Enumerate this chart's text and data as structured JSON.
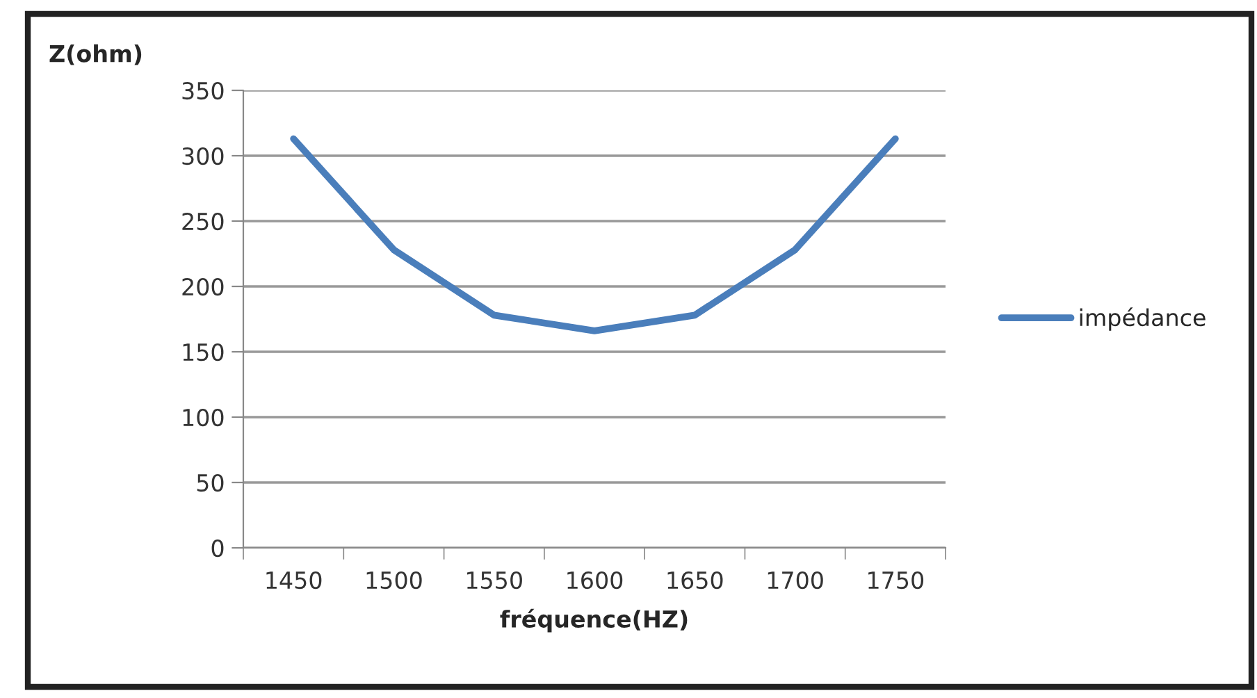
{
  "chart_data": {
    "type": "line",
    "xlabel": "fréquence(HZ)",
    "ylabel": "Z(ohm)",
    "categories": [
      "1450",
      "1500",
      "1550",
      "1600",
      "1650",
      "1700",
      "1750"
    ],
    "series": [
      {
        "name": "impédance",
        "color": "#4a7ebb",
        "values": [
          313,
          228,
          178,
          166,
          178,
          228,
          313
        ]
      }
    ],
    "ylim": [
      0,
      350
    ],
    "yticks": [
      0,
      50,
      100,
      150,
      200,
      250,
      300,
      350
    ],
    "grid": "y",
    "legend": "right",
    "marker": "none",
    "line_style": "solid"
  }
}
